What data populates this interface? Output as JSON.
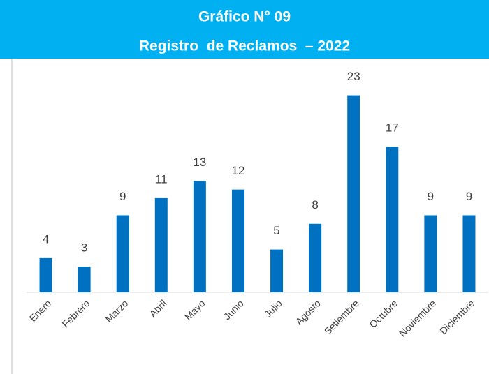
{
  "chart_data": {
    "type": "bar",
    "title": "Gráfico N° 09",
    "subtitle": "Registro  de Reclamos  – 2022",
    "categories": [
      "Enero",
      "Febrero",
      "Marzo",
      "Abril",
      "Mayo",
      "Junio",
      "Julio",
      "Agosto",
      "Setiembre",
      "Octubre",
      "Noviembre",
      "Diciembre"
    ],
    "values": [
      4,
      3,
      9,
      11,
      13,
      12,
      5,
      8,
      23,
      17,
      9,
      9
    ],
    "color": "#0070c0",
    "ylim": [
      0,
      25
    ]
  }
}
